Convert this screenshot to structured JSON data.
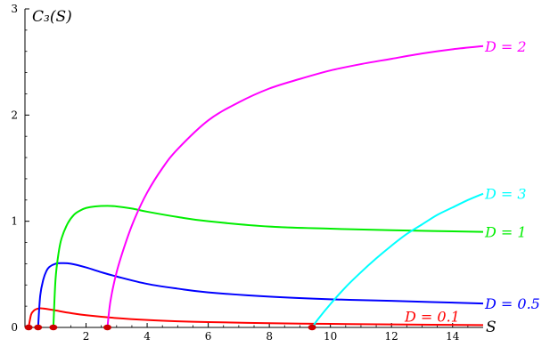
{
  "chart_data": {
    "type": "line",
    "title": "",
    "xlabel": "S",
    "ylabel": "C₃(S)",
    "xlim": [
      0,
      15
    ],
    "ylim": [
      0,
      3
    ],
    "x_ticks": [
      2,
      4,
      6,
      8,
      10,
      12,
      14
    ],
    "y_ticks": [
      0,
      1,
      2,
      3
    ],
    "grid": false,
    "legend": "inline labels at right end of curves",
    "series": [
      {
        "name": "D = 0.1",
        "color": "#ff0000",
        "x": [
          0.12,
          0.2,
          0.3,
          0.4,
          0.5,
          0.6,
          0.8,
          1.0,
          1.5,
          2,
          3,
          4,
          5,
          6,
          8,
          10,
          12,
          15
        ],
        "y": [
          0,
          0.12,
          0.16,
          0.175,
          0.18,
          0.178,
          0.17,
          0.16,
          0.135,
          0.115,
          0.088,
          0.07,
          0.058,
          0.05,
          0.04,
          0.033,
          0.028,
          0.022
        ]
      },
      {
        "name": "D = 0.5",
        "color": "#0000ff",
        "x": [
          0.43,
          0.5,
          0.6,
          0.7,
          0.8,
          1.0,
          1.2,
          1.5,
          2,
          2.5,
          3,
          4,
          5,
          6,
          8,
          10,
          12,
          15
        ],
        "y": [
          0,
          0.3,
          0.45,
          0.53,
          0.57,
          0.6,
          0.605,
          0.6,
          0.565,
          0.52,
          0.48,
          0.41,
          0.365,
          0.33,
          0.29,
          0.265,
          0.25,
          0.225
        ]
      },
      {
        "name": "D = 1",
        "color": "#00ee00",
        "x": [
          0.93,
          1.0,
          1.1,
          1.2,
          1.4,
          1.6,
          1.8,
          2.0,
          2.3,
          2.7,
          3,
          3.5,
          4,
          5,
          6,
          8,
          10,
          12,
          15
        ],
        "y": [
          0,
          0.45,
          0.7,
          0.84,
          0.98,
          1.06,
          1.1,
          1.125,
          1.14,
          1.145,
          1.14,
          1.12,
          1.09,
          1.04,
          1.0,
          0.95,
          0.93,
          0.915,
          0.9
        ]
      },
      {
        "name": "D = 2",
        "color": "#ff00ff",
        "x": [
          2.7,
          2.8,
          3.0,
          3.3,
          3.6,
          4,
          4.5,
          5,
          6,
          7,
          8,
          9,
          10,
          11,
          12,
          13,
          14,
          15
        ],
        "y": [
          0,
          0.25,
          0.52,
          0.8,
          1.03,
          1.27,
          1.5,
          1.68,
          1.95,
          2.12,
          2.25,
          2.34,
          2.42,
          2.48,
          2.53,
          2.58,
          2.62,
          2.65
        ]
      },
      {
        "name": "D = 3",
        "color": "#00ffff",
        "x": [
          9.4,
          9.6,
          10,
          10.5,
          11,
          11.5,
          12,
          12.5,
          13,
          13.5,
          14,
          14.5,
          15
        ],
        "y": [
          0,
          0.08,
          0.22,
          0.38,
          0.52,
          0.65,
          0.77,
          0.88,
          0.97,
          1.06,
          1.13,
          1.2,
          1.26
        ]
      }
    ],
    "equilibrium_points": {
      "color": "#cc0000",
      "x": [
        0.12,
        0.43,
        0.93,
        2.7,
        9.4
      ],
      "y": [
        0,
        0,
        0,
        0,
        0
      ]
    }
  }
}
